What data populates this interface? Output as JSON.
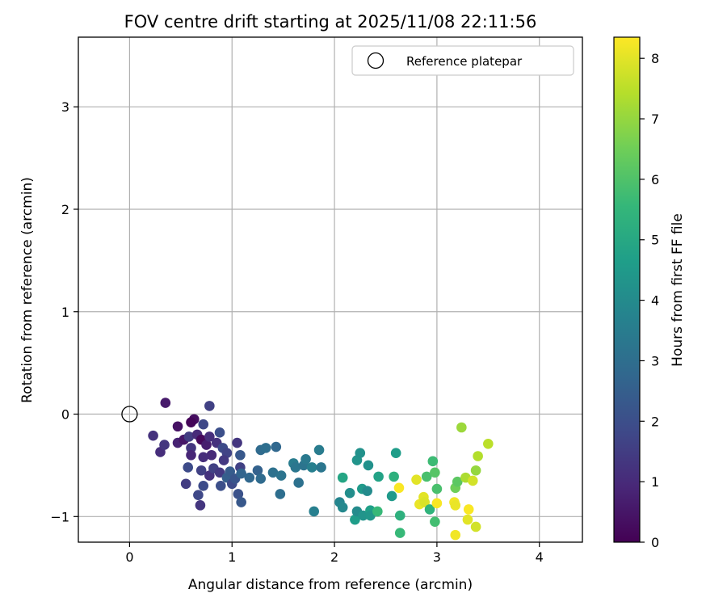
{
  "chart_data": {
    "type": "scatter",
    "title": "FOV centre drift starting at 2025/11/08 22:11:56",
    "xlabel": "Angular distance from reference (arcmin)",
    "ylabel": "Rotation from reference (arcmin)",
    "xlim": [
      -0.5,
      4.42
    ],
    "ylim": [
      -1.25,
      3.68
    ],
    "xticks": [
      0,
      1,
      2,
      3,
      4
    ],
    "xtick_labels": [
      "0",
      "1",
      "2",
      "3",
      "4"
    ],
    "yticks": [
      -1,
      0,
      1,
      2,
      3
    ],
    "ytick_labels": [
      "−1",
      "0",
      "1",
      "2",
      "3"
    ],
    "grid": true,
    "legend": {
      "position": "top-right",
      "label": "Reference platepar"
    },
    "reference_point": {
      "x": 0,
      "y": 0
    },
    "colorbar": {
      "label": "Hours from first FF file",
      "range": [
        0,
        8.35
      ],
      "ticks": [
        0,
        1,
        2,
        3,
        4,
        5,
        6,
        7,
        8
      ],
      "tick_labels": [
        "0",
        "1",
        "2",
        "3",
        "4",
        "5",
        "6",
        "7",
        "8"
      ],
      "colormap": "viridis"
    },
    "points": [
      {
        "x": 0.35,
        "y": 0.11,
        "c": 0.6
      },
      {
        "x": 0.47,
        "y": -0.12,
        "c": 0.4
      },
      {
        "x": 0.63,
        "y": -0.05,
        "c": 0.3
      },
      {
        "x": 0.6,
        "y": -0.08,
        "c": 0.1
      },
      {
        "x": 0.78,
        "y": 0.08,
        "c": 1.6
      },
      {
        "x": 0.23,
        "y": -0.21,
        "c": 1.2
      },
      {
        "x": 0.3,
        "y": -0.37,
        "c": 1.1
      },
      {
        "x": 0.34,
        "y": -0.3,
        "c": 1.3
      },
      {
        "x": 0.47,
        "y": -0.28,
        "c": 0.8
      },
      {
        "x": 0.53,
        "y": -0.25,
        "c": 0.5
      },
      {
        "x": 0.58,
        "y": -0.22,
        "c": 1.5
      },
      {
        "x": 0.6,
        "y": -0.33,
        "c": 1.3
      },
      {
        "x": 0.6,
        "y": -0.4,
        "c": 0.9
      },
      {
        "x": 0.66,
        "y": -0.2,
        "c": 1.0
      },
      {
        "x": 0.7,
        "y": -0.25,
        "c": 0.2
      },
      {
        "x": 0.72,
        "y": -0.1,
        "c": 1.8
      },
      {
        "x": 0.75,
        "y": -0.3,
        "c": 0.7
      },
      {
        "x": 0.78,
        "y": -0.22,
        "c": 1.1
      },
      {
        "x": 0.8,
        "y": -0.4,
        "c": 1.0
      },
      {
        "x": 0.85,
        "y": -0.28,
        "c": 1.2
      },
      {
        "x": 0.88,
        "y": -0.18,
        "c": 2.0
      },
      {
        "x": 0.91,
        "y": -0.33,
        "c": 1.9
      },
      {
        "x": 0.95,
        "y": -0.38,
        "c": 1.7
      },
      {
        "x": 0.92,
        "y": -0.45,
        "c": 1.4
      },
      {
        "x": 0.72,
        "y": -0.42,
        "c": 1.1
      },
      {
        "x": 0.7,
        "y": -0.55,
        "c": 1.6
      },
      {
        "x": 0.57,
        "y": -0.52,
        "c": 1.9
      },
      {
        "x": 0.55,
        "y": -0.68,
        "c": 1.5
      },
      {
        "x": 0.67,
        "y": -0.79,
        "c": 1.8
      },
      {
        "x": 0.69,
        "y": -0.89,
        "c": 1.3
      },
      {
        "x": 0.72,
        "y": -0.7,
        "c": 1.9
      },
      {
        "x": 0.78,
        "y": -0.6,
        "c": 1.2
      },
      {
        "x": 0.82,
        "y": -0.53,
        "c": 1.6
      },
      {
        "x": 0.88,
        "y": -0.57,
        "c": 1.4
      },
      {
        "x": 0.89,
        "y": -0.7,
        "c": 2.0
      },
      {
        "x": 0.95,
        "y": -0.62,
        "c": 2.5
      },
      {
        "x": 0.98,
        "y": -0.56,
        "c": 2.4
      },
      {
        "x": 1.0,
        "y": -0.68,
        "c": 1.9
      },
      {
        "x": 1.03,
        "y": -0.63,
        "c": 2.2
      },
      {
        "x": 1.05,
        "y": -0.28,
        "c": 1.3
      },
      {
        "x": 1.08,
        "y": -0.4,
        "c": 2.3
      },
      {
        "x": 1.08,
        "y": -0.52,
        "c": 1.6
      },
      {
        "x": 1.09,
        "y": -0.58,
        "c": 2.7
      },
      {
        "x": 1.06,
        "y": -0.78,
        "c": 2.1
      },
      {
        "x": 1.09,
        "y": -0.86,
        "c": 2.3
      },
      {
        "x": 1.17,
        "y": -0.62,
        "c": 2.8
      },
      {
        "x": 1.25,
        "y": -0.55,
        "c": 2.6
      },
      {
        "x": 1.28,
        "y": -0.35,
        "c": 2.9
      },
      {
        "x": 1.33,
        "y": -0.33,
        "c": 3.0
      },
      {
        "x": 1.28,
        "y": -0.63,
        "c": 2.9
      },
      {
        "x": 1.4,
        "y": -0.57,
        "c": 3.1
      },
      {
        "x": 1.43,
        "y": -0.32,
        "c": 2.8
      },
      {
        "x": 1.48,
        "y": -0.6,
        "c": 3.2
      },
      {
        "x": 1.47,
        "y": -0.78,
        "c": 3.0
      },
      {
        "x": 1.6,
        "y": -0.48,
        "c": 3.5
      },
      {
        "x": 1.62,
        "y": -0.52,
        "c": 3.3
      },
      {
        "x": 1.65,
        "y": -0.67,
        "c": 3.1
      },
      {
        "x": 1.7,
        "y": -0.5,
        "c": 3.2
      },
      {
        "x": 1.72,
        "y": -0.44,
        "c": 3.4
      },
      {
        "x": 1.78,
        "y": -0.52,
        "c": 3.6
      },
      {
        "x": 1.85,
        "y": -0.35,
        "c": 3.5
      },
      {
        "x": 1.87,
        "y": -0.52,
        "c": 3.3
      },
      {
        "x": 1.8,
        "y": -0.95,
        "c": 3.6
      },
      {
        "x": 2.05,
        "y": -0.86,
        "c": 3.8
      },
      {
        "x": 2.08,
        "y": -0.62,
        "c": 4.9
      },
      {
        "x": 2.08,
        "y": -0.91,
        "c": 3.9
      },
      {
        "x": 2.15,
        "y": -0.77,
        "c": 4.1
      },
      {
        "x": 2.2,
        "y": -1.03,
        "c": 4.6
      },
      {
        "x": 2.22,
        "y": -0.45,
        "c": 4.3
      },
      {
        "x": 2.22,
        "y": -0.95,
        "c": 4.0
      },
      {
        "x": 2.25,
        "y": -0.38,
        "c": 4.2
      },
      {
        "x": 2.27,
        "y": -0.73,
        "c": 4.5
      },
      {
        "x": 2.28,
        "y": -0.99,
        "c": 4.3
      },
      {
        "x": 2.33,
        "y": -0.5,
        "c": 4.2
      },
      {
        "x": 2.32,
        "y": -0.75,
        "c": 4.0
      },
      {
        "x": 2.35,
        "y": -0.94,
        "c": 4.7
      },
      {
        "x": 2.35,
        "y": -0.99,
        "c": 4.4
      },
      {
        "x": 2.42,
        "y": -0.95,
        "c": 5.6
      },
      {
        "x": 2.43,
        "y": -0.61,
        "c": 4.8
      },
      {
        "x": 2.56,
        "y": -0.8,
        "c": 4.5
      },
      {
        "x": 2.58,
        "y": -0.61,
        "c": 5.3
      },
      {
        "x": 2.6,
        "y": -0.38,
        "c": 4.6
      },
      {
        "x": 2.63,
        "y": -0.72,
        "c": 8.3
      },
      {
        "x": 2.64,
        "y": -0.99,
        "c": 5.3
      },
      {
        "x": 2.64,
        "y": -1.16,
        "c": 5.6
      },
      {
        "x": 2.8,
        "y": -0.64,
        "c": 8.0
      },
      {
        "x": 2.83,
        "y": -0.88,
        "c": 8.1
      },
      {
        "x": 2.87,
        "y": -0.81,
        "c": 8.0
      },
      {
        "x": 2.88,
        "y": -0.86,
        "c": 7.9
      },
      {
        "x": 2.9,
        "y": -0.61,
        "c": 5.9
      },
      {
        "x": 2.93,
        "y": -0.93,
        "c": 5.4
      },
      {
        "x": 2.96,
        "y": -0.46,
        "c": 5.7
      },
      {
        "x": 2.98,
        "y": -0.57,
        "c": 6.1
      },
      {
        "x": 3.0,
        "y": -0.73,
        "c": 5.9
      },
      {
        "x": 3.0,
        "y": -0.87,
        "c": 8.3
      },
      {
        "x": 2.98,
        "y": -1.05,
        "c": 5.8
      },
      {
        "x": 3.17,
        "y": -0.86,
        "c": 8.2
      },
      {
        "x": 3.18,
        "y": -0.89,
        "c": 8.1
      },
      {
        "x": 3.18,
        "y": -0.72,
        "c": 6.5
      },
      {
        "x": 3.2,
        "y": -0.66,
        "c": 6.2
      },
      {
        "x": 3.18,
        "y": -1.18,
        "c": 8.2
      },
      {
        "x": 3.24,
        "y": -0.13,
        "c": 7.1
      },
      {
        "x": 3.28,
        "y": -0.62,
        "c": 7.3
      },
      {
        "x": 3.3,
        "y": -1.03,
        "c": 8.0
      },
      {
        "x": 3.31,
        "y": -0.93,
        "c": 8.3
      },
      {
        "x": 3.35,
        "y": -0.65,
        "c": 7.8
      },
      {
        "x": 3.38,
        "y": -1.1,
        "c": 7.8
      },
      {
        "x": 3.38,
        "y": -0.55,
        "c": 7.0
      },
      {
        "x": 3.4,
        "y": -0.41,
        "c": 7.4
      },
      {
        "x": 3.5,
        "y": -0.29,
        "c": 7.5
      }
    ]
  }
}
